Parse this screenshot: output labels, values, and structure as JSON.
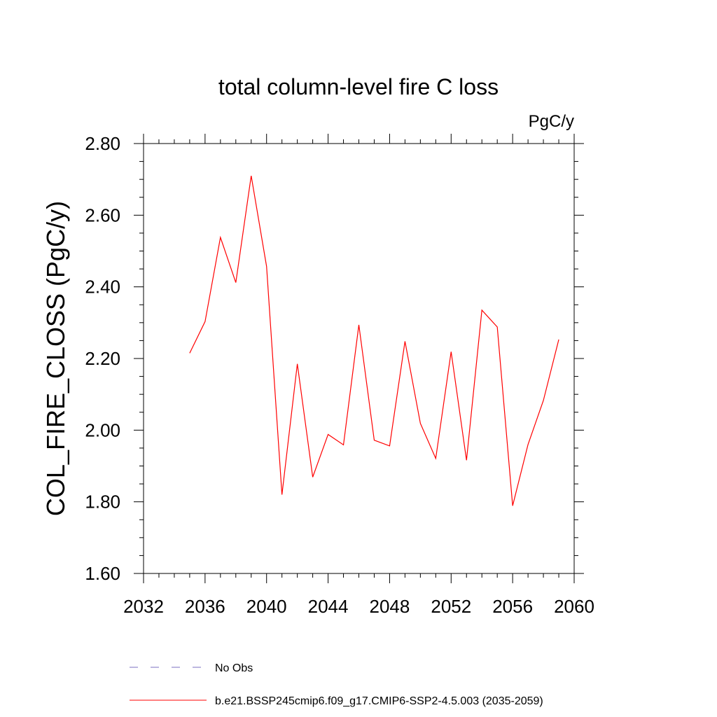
{
  "chart_data": {
    "type": "line",
    "title": "total column-level fire C loss",
    "units": "PgC/y",
    "xlabel": "",
    "ylabel": "COL_FIRE_CLOSS  (PgC/y)",
    "xlim": [
      2032,
      2060
    ],
    "ylim": [
      1.6,
      2.8
    ],
    "xticks": [
      2032,
      2036,
      2040,
      2044,
      2048,
      2052,
      2056,
      2060
    ],
    "xtick_labels": [
      "2032",
      "2036",
      "2040",
      "2044",
      "2048",
      "2052",
      "2056",
      "2060"
    ],
    "yticks": [
      1.6,
      1.8,
      2.0,
      2.2,
      2.4,
      2.6,
      2.8
    ],
    "ytick_labels": [
      "1.60",
      "1.80",
      "2.00",
      "2.20",
      "2.40",
      "2.60",
      "2.80"
    ],
    "grid": false,
    "legend_position": "bottom",
    "series": [
      {
        "name": "No Obs",
        "color": "#7b6fc0",
        "dash": "dashed",
        "x": [],
        "values": []
      },
      {
        "name": "b.e21.BSSP245cmip6.f09_g17.CMIP6-SSP2-4.5.003 (2035-2059)",
        "color": "#ff0000",
        "dash": "solid",
        "x": [
          2035,
          2036,
          2037,
          2038,
          2039,
          2040,
          2041,
          2042,
          2043,
          2044,
          2045,
          2046,
          2047,
          2048,
          2049,
          2050,
          2051,
          2052,
          2053,
          2054,
          2055,
          2056,
          2057,
          2058,
          2059
        ],
        "values": [
          2.215,
          2.303,
          2.538,
          2.412,
          2.71,
          2.457,
          1.82,
          2.185,
          1.869,
          1.988,
          1.959,
          2.294,
          1.972,
          1.956,
          2.248,
          2.019,
          1.921,
          2.219,
          1.916,
          2.335,
          2.288,
          1.789,
          1.96,
          2.083,
          2.253
        ]
      }
    ]
  }
}
